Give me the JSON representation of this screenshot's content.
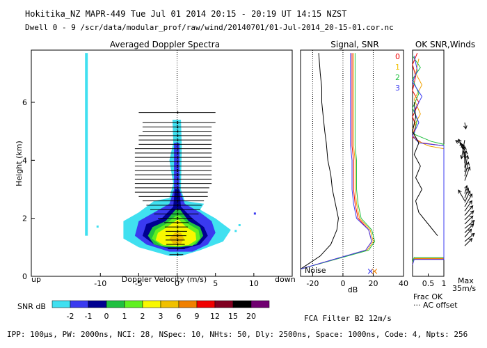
{
  "header": {
    "line1": "Hokitika_NZ   MAPR-449   Tue Jul 01 2014 20:15 - 20:19 UT 14:15 NZST",
    "line2": "Dwell  0 - 9   /scr/data/modular_prof/raw/wind/20140701/01-Jul-2014_20-15-01.cor.nc"
  },
  "footer": {
    "params": "IPP: 100μs,  PW: 2000ns,  NCI:  28,  NSpec: 10, NHts: 50,  Dly: 2500ns,  Space: 1000ns,  Code: 4,  Npts: 256",
    "filter": "FCA Filter B2 12m/s"
  },
  "colors": {
    "cyan": "#40e0f0",
    "blue": "#3a3af0",
    "navy": "#000090",
    "green": "#20c040",
    "lime": "#60f020",
    "yellow": "#f8f800",
    "gold": "#f0c000",
    "orange": "#f08000",
    "red": "#f00000",
    "maroon": "#800020",
    "black": "#000000",
    "purple": "#700070"
  },
  "chart_data": [
    {
      "type": "heatmap",
      "title": "Averaged Doppler Spectra",
      "xlabel": "Doppler Velocity (m/s)",
      "ylabel": "Height (km)",
      "xlim": [
        -19,
        15
      ],
      "ylim": [
        0,
        7.8
      ],
      "xticks": [
        "-10",
        "-5",
        "0",
        "5",
        "10"
      ],
      "yticks": [
        "0",
        "2",
        "4",
        "6"
      ],
      "left_label": "up",
      "right_label": "down",
      "colorbar": {
        "label": "SNR dB",
        "ticks": [
          "-2",
          "-1",
          "0",
          "1",
          "2",
          "3",
          "6",
          "9",
          "12",
          "15",
          "20"
        ],
        "colors": [
          "#40e0f0",
          "#3a3af0",
          "#000090",
          "#20c040",
          "#60f020",
          "#f8f800",
          "#f0c000",
          "#f08000",
          "#f00000",
          "#800020",
          "#000000",
          "#700070"
        ]
      },
      "spectral_width_bars": [
        {
          "h": 0.75,
          "v0": -1.0,
          "v1": 0.8
        },
        {
          "h": 0.95,
          "v0": -1.2,
          "v1": 1.0
        },
        {
          "h": 1.1,
          "v0": -1.4,
          "v1": 1.0
        },
        {
          "h": 1.25,
          "v0": -1.5,
          "v1": 1.0
        },
        {
          "h": 1.4,
          "v0": -1.5,
          "v1": 1.2
        },
        {
          "h": 1.55,
          "v0": -1.5,
          "v1": 1.3
        },
        {
          "h": 1.7,
          "v0": -1.6,
          "v1": 1.4
        },
        {
          "h": 1.85,
          "v0": -1.7,
          "v1": 1.5
        },
        {
          "h": 2.0,
          "v0": -2.5,
          "v1": 2.0
        },
        {
          "h": 2.15,
          "v0": -3.0,
          "v1": 2.8
        },
        {
          "h": 2.3,
          "v0": -3.5,
          "v1": 3.0
        },
        {
          "h": 2.45,
          "v0": -4.0,
          "v1": 3.2
        },
        {
          "h": 2.6,
          "v0": -4.5,
          "v1": 3.5
        },
        {
          "h": 2.75,
          "v0": -5.0,
          "v1": 4.0
        },
        {
          "h": 2.9,
          "v0": -5.5,
          "v1": 4.0
        },
        {
          "h": 3.05,
          "v0": -5.5,
          "v1": 4.2
        },
        {
          "h": 3.2,
          "v0": -5.5,
          "v1": 4.5
        },
        {
          "h": 3.35,
          "v0": -5.5,
          "v1": 4.5
        },
        {
          "h": 3.5,
          "v0": -5.5,
          "v1": 4.5
        },
        {
          "h": 3.65,
          "v0": -5.5,
          "v1": 4.5
        },
        {
          "h": 3.8,
          "v0": -5.5,
          "v1": 4.5
        },
        {
          "h": 3.95,
          "v0": -5.5,
          "v1": 4.5
        },
        {
          "h": 4.1,
          "v0": -5.5,
          "v1": 4.5
        },
        {
          "h": 4.25,
          "v0": -5.5,
          "v1": 4.5
        },
        {
          "h": 4.4,
          "v0": -5.5,
          "v1": 4.5
        },
        {
          "h": 4.55,
          "v0": -5.0,
          "v1": 4.5
        },
        {
          "h": 4.7,
          "v0": -5.0,
          "v1": 4.5
        },
        {
          "h": 4.85,
          "v0": -5.0,
          "v1": 4.5
        },
        {
          "h": 5.0,
          "v0": -4.5,
          "v1": 4.5
        },
        {
          "h": 5.15,
          "v0": -4.5,
          "v1": 4.5
        },
        {
          "h": 5.3,
          "v0": -4.5,
          "v1": 5.0
        },
        {
          "h": 5.65,
          "v0": -5.0,
          "v1": 5.0
        }
      ]
    },
    {
      "type": "line",
      "title": "Signal, SNR",
      "xlabel": "dB",
      "xlim": [
        -28,
        40
      ],
      "ylim": [
        0,
        7.8
      ],
      "xticks": [
        "-20",
        "0",
        "20",
        "40"
      ],
      "noise_label": "Noise",
      "series_labels": [
        "0",
        "1",
        "2",
        "3"
      ],
      "series": [
        {
          "name": "noise",
          "color": "#000000",
          "points": [
            [
              -28,
              0.25
            ],
            [
              -15,
              0.7
            ],
            [
              -8,
              1.1
            ],
            [
              -4,
              1.6
            ],
            [
              -3,
              2.0
            ],
            [
              -5,
              2.5
            ],
            [
              -7,
              3.0
            ],
            [
              -8,
              3.5
            ],
            [
              -10,
              4.0
            ],
            [
              -11,
              4.6
            ],
            [
              -12,
              5.0
            ],
            [
              -13,
              5.5
            ],
            [
              -14,
              6.0
            ],
            [
              -14,
              6.5
            ],
            [
              -15,
              7.0
            ],
            [
              -16,
              7.7
            ]
          ]
        },
        {
          "name": "0",
          "color": "#f00000",
          "points": [
            [
              -28,
              0.25
            ],
            [
              -5,
              0.6
            ],
            [
              15,
              0.9
            ],
            [
              19,
              1.2
            ],
            [
              17,
              1.6
            ],
            [
              10,
              2.0
            ],
            [
              8,
              2.5
            ],
            [
              7,
              3.0
            ],
            [
              7,
              3.5
            ],
            [
              7,
              4.0
            ],
            [
              6,
              4.5
            ],
            [
              6,
              5.0
            ],
            [
              6,
              5.5
            ],
            [
              6,
              6.0
            ],
            [
              6,
              6.5
            ],
            [
              6,
              7.0
            ],
            [
              6,
              7.7
            ]
          ]
        },
        {
          "name": "1",
          "color": "#f0a000",
          "points": [
            [
              -28,
              0.25
            ],
            [
              -4,
              0.6
            ],
            [
              16,
              0.9
            ],
            [
              20,
              1.2
            ],
            [
              18,
              1.6
            ],
            [
              11,
              2.0
            ],
            [
              9,
              2.5
            ],
            [
              8,
              3.0
            ],
            [
              8,
              3.5
            ],
            [
              8,
              4.0
            ],
            [
              7,
              4.5
            ],
            [
              7,
              5.0
            ],
            [
              7,
              5.5
            ],
            [
              7,
              6.0
            ],
            [
              7,
              6.5
            ],
            [
              7,
              7.0
            ],
            [
              7,
              7.7
            ]
          ]
        },
        {
          "name": "2",
          "color": "#20c040",
          "points": [
            [
              -28,
              0.25
            ],
            [
              -4,
              0.6
            ],
            [
              17,
              0.9
            ],
            [
              21,
              1.2
            ],
            [
              19,
              1.6
            ],
            [
              12,
              2.0
            ],
            [
              10,
              2.5
            ],
            [
              9,
              3.0
            ],
            [
              9,
              3.5
            ],
            [
              9,
              4.0
            ],
            [
              8,
              4.5
            ],
            [
              8,
              5.0
            ],
            [
              8,
              5.5
            ],
            [
              8,
              6.0
            ],
            [
              8,
              6.5
            ],
            [
              8,
              7.0
            ],
            [
              8,
              7.7
            ]
          ]
        },
        {
          "name": "3",
          "color": "#3a3af0",
          "points": [
            [
              -28,
              0.25
            ],
            [
              -5,
              0.6
            ],
            [
              15,
              0.9
            ],
            [
              19,
              1.2
            ],
            [
              17,
              1.6
            ],
            [
              9,
              2.0
            ],
            [
              7,
              2.5
            ],
            [
              6,
              3.0
            ],
            [
              6,
              3.5
            ],
            [
              6,
              4.0
            ],
            [
              5,
              4.5
            ],
            [
              5,
              5.0
            ],
            [
              5,
              5.5
            ],
            [
              5,
              6.0
            ],
            [
              5,
              6.5
            ],
            [
              5,
              7.0
            ],
            [
              5,
              7.7
            ]
          ]
        }
      ]
    },
    {
      "type": "line",
      "title": "OK SNR,Winds",
      "xlim": [
        0,
        1
      ],
      "ylim": [
        0,
        7.8
      ],
      "xticks": [
        "0.5",
        "1"
      ],
      "xlabel": "Frac OK",
      "legend": "··· AC offset",
      "max_label": "Max",
      "max_value": "35m/s",
      "series": [
        {
          "name": "frac-ok-red",
          "color": "#f00000",
          "points": [
            [
              0,
              0.4
            ],
            [
              0.05,
              0.6
            ],
            [
              1,
              0.6
            ],
            [
              1,
              4.5
            ],
            [
              0.3,
              4.6
            ],
            [
              0,
              4.8
            ],
            [
              0.1,
              5.2
            ],
            [
              0,
              5.5
            ],
            [
              0.2,
              6.0
            ],
            [
              0,
              6.4
            ],
            [
              0.1,
              6.9
            ],
            [
              0,
              7.3
            ],
            [
              0.15,
              7.7
            ]
          ]
        },
        {
          "name": "frac-ok-orange",
          "color": "#f0a000",
          "points": [
            [
              0,
              0.45
            ],
            [
              0.05,
              0.62
            ],
            [
              1,
              0.62
            ],
            [
              1,
              4.4
            ],
            [
              0.5,
              4.5
            ],
            [
              0.1,
              4.7
            ],
            [
              0,
              5.1
            ],
            [
              0.25,
              5.6
            ],
            [
              0.05,
              6.1
            ],
            [
              0.3,
              6.6
            ],
            [
              0.1,
              7.0
            ],
            [
              0.2,
              7.5
            ]
          ]
        },
        {
          "name": "frac-ok-green",
          "color": "#20c040",
          "points": [
            [
              0,
              0.5
            ],
            [
              0.05,
              0.65
            ],
            [
              1,
              0.65
            ],
            [
              1,
              4.55
            ],
            [
              0.6,
              4.65
            ],
            [
              0.05,
              4.9
            ],
            [
              0.15,
              5.4
            ],
            [
              0,
              5.8
            ],
            [
              0.2,
              6.3
            ],
            [
              0,
              6.8
            ],
            [
              0.25,
              7.2
            ],
            [
              0,
              7.6
            ]
          ]
        },
        {
          "name": "frac-ok-blue",
          "color": "#3a3af0",
          "points": [
            [
              0,
              0.4
            ],
            [
              0.05,
              0.58
            ],
            [
              1,
              0.58
            ],
            [
              1,
              4.5
            ],
            [
              0.2,
              4.6
            ],
            [
              0,
              4.85
            ],
            [
              0.2,
              5.3
            ],
            [
              0.05,
              5.7
            ],
            [
              0.3,
              6.2
            ],
            [
              0,
              6.7
            ],
            [
              0.15,
              7.1
            ],
            [
              0.05,
              7.6
            ]
          ]
        },
        {
          "name": "ac-offset",
          "color": "#000000",
          "points": [
            [
              0.8,
              1.4
            ],
            [
              0.5,
              1.8
            ],
            [
              0.2,
              2.2
            ],
            [
              0.1,
              2.6
            ],
            [
              0.3,
              3.0
            ],
            [
              0.1,
              3.4
            ],
            [
              0.25,
              3.8
            ],
            [
              0.05,
              4.2
            ],
            [
              0.2,
              4.6
            ],
            [
              0,
              5.0
            ],
            [
              0.1,
              5.5
            ],
            [
              0.05,
              6.0
            ]
          ]
        }
      ],
      "wind_barbs": [
        {
          "h": 1.05,
          "dir": 45,
          "spd": 0.5
        },
        {
          "h": 1.2,
          "dir": 50,
          "spd": 0.6
        },
        {
          "h": 1.35,
          "dir": 40,
          "spd": 0.5
        },
        {
          "h": 1.5,
          "dir": 45,
          "spd": 0.6
        },
        {
          "h": 1.65,
          "dir": 50,
          "spd": 0.6
        },
        {
          "h": 1.8,
          "dir": 45,
          "spd": 0.55
        },
        {
          "h": 1.95,
          "dir": 45,
          "spd": 0.6
        },
        {
          "h": 2.1,
          "dir": 40,
          "spd": 0.6
        },
        {
          "h": 2.25,
          "dir": 35,
          "spd": 0.6
        },
        {
          "h": 2.4,
          "dir": 30,
          "spd": 0.7
        },
        {
          "h": 2.55,
          "dir": 25,
          "spd": 0.6
        },
        {
          "h": 2.7,
          "dir": 20,
          "spd": 0.5
        },
        {
          "h": 2.85,
          "dir": 15,
          "spd": 0.4
        },
        {
          "h": 3.3,
          "dir": 20,
          "spd": 0.7
        },
        {
          "h": 3.45,
          "dir": 15,
          "spd": 0.7
        },
        {
          "h": 3.6,
          "dir": 10,
          "spd": 0.8
        },
        {
          "h": 3.75,
          "dir": 5,
          "spd": 0.8
        },
        {
          "h": 3.9,
          "dir": 0,
          "spd": 0.8
        },
        {
          "h": 4.05,
          "dir": 350,
          "spd": 0.7
        },
        {
          "h": 4.2,
          "dir": 340,
          "spd": 0.6
        },
        {
          "h": 4.35,
          "dir": 330,
          "spd": 0.6
        },
        {
          "h": 4.5,
          "dir": 300,
          "spd": 0.5
        },
        {
          "h": 4.7,
          "dir": 190,
          "spd": 0.9
        },
        {
          "h": 5.3,
          "dir": 170,
          "spd": 0.3
        },
        {
          "h": 2.6,
          "dir": 330,
          "spd": 0.6
        }
      ]
    }
  ]
}
